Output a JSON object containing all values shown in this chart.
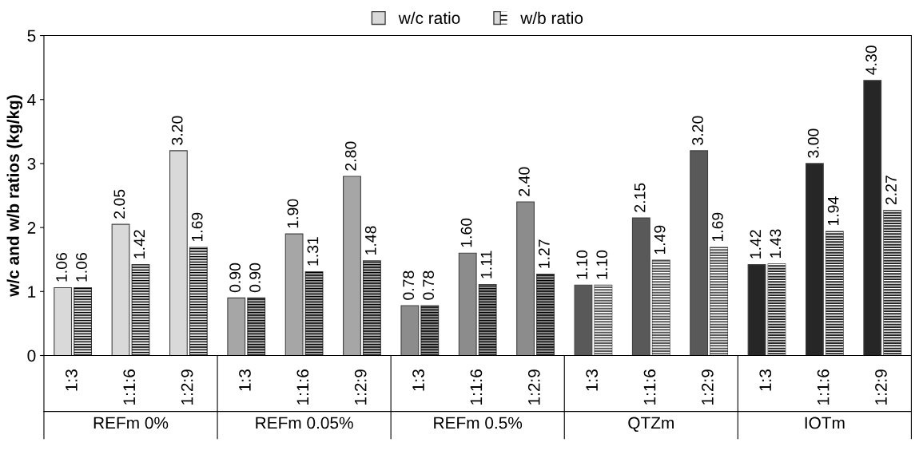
{
  "chart_data": {
    "type": "bar",
    "ylabel": "w/c and w/b ratios (kg/kg)",
    "categories": [
      "1:3",
      "1:1:6",
      "1:2:9",
      "1:3",
      "1:1:6",
      "1:2:9",
      "1:3",
      "1:1:6",
      "1:2:9",
      "1:3",
      "1:1:6",
      "1:2:9",
      "1:3",
      "1:1:6",
      "1:2:9"
    ],
    "annotations": [
      "REFm 0%",
      "REFm 0.05%",
      "REFm 0.5%",
      "QTZm",
      "IOTm"
    ],
    "series": [
      {
        "name": "w/c ratio",
        "color": "#d9d9d9",
        "colors": [
          "#d9d9d9",
          "#d9d9d9",
          "#d9d9d9",
          "#a6a6a6",
          "#a6a6a6",
          "#a6a6a6",
          "#8c8c8c",
          "#8c8c8c",
          "#8c8c8c",
          "#595959",
          "#595959",
          "#595959",
          "#262626",
          "#262626",
          "#262626"
        ],
        "values": [
          1.06,
          2.05,
          3.2,
          0.9,
          1.9,
          2.8,
          0.78,
          1.6,
          2.4,
          1.1,
          2.15,
          3.2,
          1.42,
          3.0,
          4.3
        ],
        "value_labels": [
          "1.06",
          "2.05",
          "3.20",
          "0.90",
          "1.90",
          "2.80",
          "0.78",
          "1.60",
          "2.40",
          "1.10",
          "2.15",
          "3.20",
          "1.42",
          "3.00",
          "4.30"
        ]
      },
      {
        "name": "w/b ratio",
        "color": "#d9d9d9",
        "colors": [
          "#d9d9d9",
          "#d9d9d9",
          "#d9d9d9",
          "#a6a6a6",
          "#a6a6a6",
          "#a6a6a6",
          "#8c8c8c",
          "#8c8c8c",
          "#8c8c8c",
          "#595959",
          "#595959",
          "#595959",
          "#262626",
          "#262626",
          "#262626"
        ],
        "values": [
          1.06,
          1.42,
          1.69,
          0.9,
          1.31,
          1.48,
          0.78,
          1.11,
          1.27,
          1.1,
          1.49,
          1.69,
          1.43,
          1.94,
          2.27
        ],
        "value_labels": [
          "1.06",
          "1.42",
          "1.69",
          "0.90",
          "1.31",
          "1.48",
          "0.78",
          "1.11",
          "1.27",
          "1.10",
          "1.49",
          "1.69",
          "1.43",
          "1.94",
          "2.27"
        ]
      }
    ],
    "ylim": [
      0,
      5
    ],
    "yticks": [
      0,
      1,
      2,
      3,
      4,
      5
    ],
    "grid": false,
    "legend": "top"
  }
}
